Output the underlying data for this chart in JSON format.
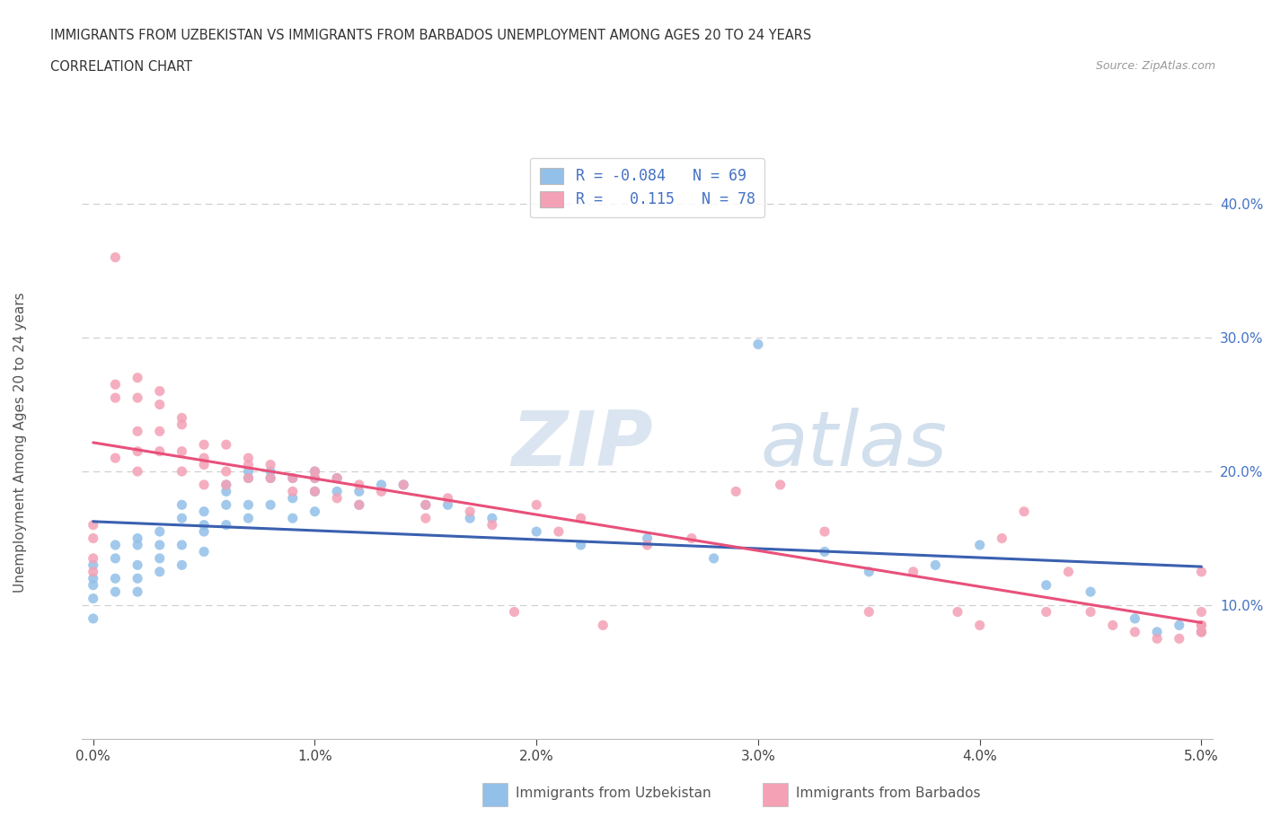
{
  "title_line1": "IMMIGRANTS FROM UZBEKISTAN VS IMMIGRANTS FROM BARBADOS UNEMPLOYMENT AMONG AGES 20 TO 24 YEARS",
  "title_line2": "CORRELATION CHART",
  "source_text": "Source: ZipAtlas.com",
  "ylabel": "Unemployment Among Ages 20 to 24 years",
  "xlim": [
    -0.0005,
    0.0505
  ],
  "ylim": [
    0.0,
    0.44
  ],
  "xticks": [
    0.0,
    0.01,
    0.02,
    0.03,
    0.04,
    0.05
  ],
  "yticks": [
    0.1,
    0.2,
    0.3,
    0.4
  ],
  "uzbekistan_color": "#92C0E8",
  "barbados_color": "#F4A0B5",
  "uzbekistan_line_color": "#3A60B0",
  "barbados_line_color": "#E8507A",
  "R_uzbekistan": -0.084,
  "N_uzbekistan": 69,
  "R_barbados": 0.115,
  "N_barbados": 78,
  "legend_label_uzbekistan": "Immigrants from Uzbekistan",
  "legend_label_barbados": "Immigrants from Barbados",
  "watermark_part1": "ZIP",
  "watermark_part2": "atlas",
  "uzbekistan_x": [
    0.0,
    0.0,
    0.0,
    0.0,
    0.0,
    0.001,
    0.001,
    0.001,
    0.001,
    0.002,
    0.002,
    0.002,
    0.002,
    0.002,
    0.003,
    0.003,
    0.003,
    0.003,
    0.004,
    0.004,
    0.004,
    0.004,
    0.005,
    0.005,
    0.005,
    0.005,
    0.006,
    0.006,
    0.006,
    0.006,
    0.007,
    0.007,
    0.007,
    0.007,
    0.008,
    0.008,
    0.008,
    0.009,
    0.009,
    0.009,
    0.01,
    0.01,
    0.01,
    0.01,
    0.011,
    0.011,
    0.012,
    0.012,
    0.013,
    0.014,
    0.015,
    0.016,
    0.017,
    0.018,
    0.02,
    0.022,
    0.025,
    0.028,
    0.03,
    0.033,
    0.035,
    0.038,
    0.04,
    0.043,
    0.045,
    0.047,
    0.048,
    0.049,
    0.05
  ],
  "uzbekistan_y": [
    0.13,
    0.12,
    0.115,
    0.105,
    0.09,
    0.145,
    0.135,
    0.12,
    0.11,
    0.15,
    0.145,
    0.13,
    0.12,
    0.11,
    0.155,
    0.145,
    0.135,
    0.125,
    0.175,
    0.165,
    0.145,
    0.13,
    0.17,
    0.16,
    0.155,
    0.14,
    0.19,
    0.185,
    0.175,
    0.16,
    0.2,
    0.195,
    0.175,
    0.165,
    0.2,
    0.195,
    0.175,
    0.195,
    0.18,
    0.165,
    0.2,
    0.195,
    0.185,
    0.17,
    0.195,
    0.185,
    0.185,
    0.175,
    0.19,
    0.19,
    0.175,
    0.175,
    0.165,
    0.165,
    0.155,
    0.145,
    0.15,
    0.135,
    0.295,
    0.14,
    0.125,
    0.13,
    0.145,
    0.115,
    0.11,
    0.09,
    0.08,
    0.085,
    0.08
  ],
  "barbados_x": [
    0.0,
    0.0,
    0.0,
    0.0,
    0.001,
    0.001,
    0.001,
    0.001,
    0.002,
    0.002,
    0.002,
    0.002,
    0.002,
    0.003,
    0.003,
    0.003,
    0.003,
    0.004,
    0.004,
    0.004,
    0.004,
    0.005,
    0.005,
    0.005,
    0.005,
    0.006,
    0.006,
    0.006,
    0.007,
    0.007,
    0.007,
    0.008,
    0.008,
    0.009,
    0.009,
    0.01,
    0.01,
    0.01,
    0.011,
    0.011,
    0.012,
    0.012,
    0.013,
    0.014,
    0.015,
    0.015,
    0.016,
    0.017,
    0.018,
    0.019,
    0.02,
    0.021,
    0.022,
    0.023,
    0.025,
    0.027,
    0.029,
    0.031,
    0.033,
    0.035,
    0.037,
    0.039,
    0.04,
    0.041,
    0.042,
    0.043,
    0.044,
    0.045,
    0.046,
    0.047,
    0.048,
    0.049,
    0.05,
    0.05,
    0.05,
    0.05,
    0.05,
    0.05
  ],
  "barbados_y": [
    0.16,
    0.15,
    0.135,
    0.125,
    0.36,
    0.265,
    0.255,
    0.21,
    0.27,
    0.255,
    0.23,
    0.215,
    0.2,
    0.26,
    0.25,
    0.23,
    0.215,
    0.24,
    0.235,
    0.215,
    0.2,
    0.22,
    0.21,
    0.205,
    0.19,
    0.22,
    0.2,
    0.19,
    0.21,
    0.205,
    0.195,
    0.205,
    0.195,
    0.195,
    0.185,
    0.2,
    0.195,
    0.185,
    0.195,
    0.18,
    0.19,
    0.175,
    0.185,
    0.19,
    0.175,
    0.165,
    0.18,
    0.17,
    0.16,
    0.095,
    0.175,
    0.155,
    0.165,
    0.085,
    0.145,
    0.15,
    0.185,
    0.19,
    0.155,
    0.095,
    0.125,
    0.095,
    0.085,
    0.15,
    0.17,
    0.095,
    0.125,
    0.095,
    0.085,
    0.08,
    0.075,
    0.075,
    0.085,
    0.08,
    0.085,
    0.095,
    0.125,
    0.08
  ]
}
